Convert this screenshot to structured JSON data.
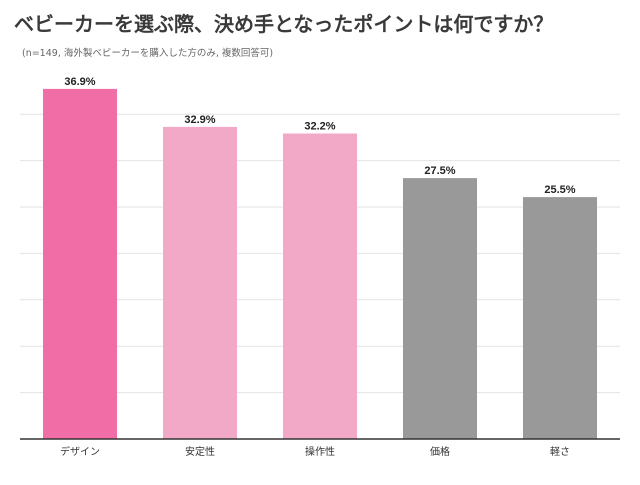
{
  "header": {
    "title": "ベビーカーを選ぶ際、決め手となったポイントは何ですか？",
    "subtitle": "(n=149, 海外製ベビーカーを購入した方のみ, 複数回答可)"
  },
  "colors": {
    "pink_strong": "#f06ea5",
    "pink_light": "#f2a9c8",
    "gray": "#999999"
  },
  "chart_data": {
    "type": "bar",
    "title": "ベビーカーを選ぶ際、決め手となったポイントは何ですか？",
    "subtitle": "(n=149, 海外製ベビーカーを購入した方のみ, 複数回答可)",
    "categories": [
      "デザイン",
      "安定性",
      "操作性",
      "価格",
      "軽さ"
    ],
    "values": [
      36.9,
      32.9,
      32.2,
      27.5,
      25.5
    ],
    "value_labels": [
      "36.9%",
      "32.9%",
      "32.2%",
      "27.5%",
      "25.5%"
    ],
    "bar_colors": [
      "#f06ea5",
      "#f2a9c8",
      "#f2a9c8",
      "#999999",
      "#999999"
    ],
    "unit": "%",
    "ylim": [
      0,
      37
    ],
    "grid": true,
    "legend": "none"
  }
}
